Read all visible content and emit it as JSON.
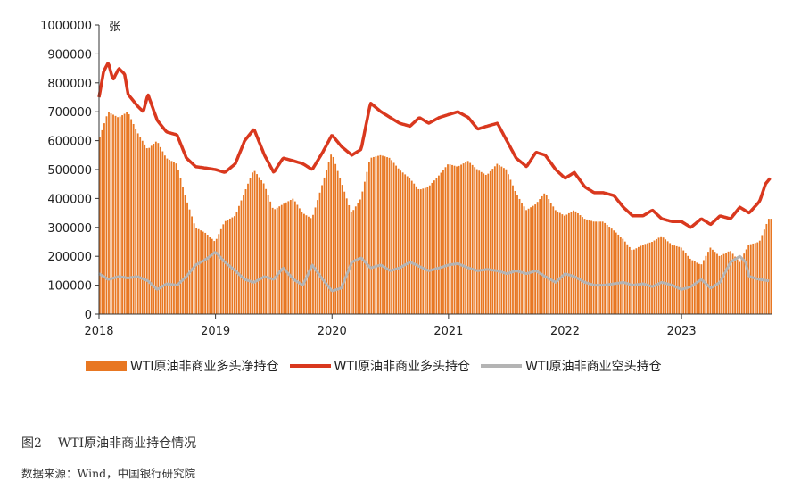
{
  "chart_data": {
    "type": "bar+line",
    "unit_label": "张",
    "ylim": [
      0,
      1000000
    ],
    "yticks": [
      0,
      100000,
      200000,
      300000,
      400000,
      500000,
      600000,
      700000,
      800000,
      900000,
      1000000
    ],
    "xlim": [
      2018.0,
      2023.78
    ],
    "xticks": [
      "2018",
      "2019",
      "2020",
      "2021",
      "2022",
      "2023"
    ],
    "legend_position": "bottom",
    "grid": false,
    "series": [
      {
        "name": "WTI原油非商业多头净持仓",
        "type": "bar",
        "color": "#E87722",
        "points": [
          [
            2018.0,
            600000
          ],
          [
            2018.08,
            700000
          ],
          [
            2018.17,
            680000
          ],
          [
            2018.25,
            700000
          ],
          [
            2018.33,
            630000
          ],
          [
            2018.42,
            570000
          ],
          [
            2018.5,
            600000
          ],
          [
            2018.58,
            540000
          ],
          [
            2018.67,
            520000
          ],
          [
            2018.75,
            400000
          ],
          [
            2018.83,
            300000
          ],
          [
            2018.92,
            280000
          ],
          [
            2019.0,
            250000
          ],
          [
            2019.08,
            320000
          ],
          [
            2019.17,
            340000
          ],
          [
            2019.25,
            420000
          ],
          [
            2019.33,
            500000
          ],
          [
            2019.42,
            450000
          ],
          [
            2019.5,
            360000
          ],
          [
            2019.58,
            380000
          ],
          [
            2019.67,
            400000
          ],
          [
            2019.75,
            350000
          ],
          [
            2019.83,
            330000
          ],
          [
            2019.92,
            450000
          ],
          [
            2020.0,
            560000
          ],
          [
            2020.08,
            460000
          ],
          [
            2020.17,
            350000
          ],
          [
            2020.25,
            400000
          ],
          [
            2020.33,
            540000
          ],
          [
            2020.42,
            550000
          ],
          [
            2020.5,
            540000
          ],
          [
            2020.58,
            500000
          ],
          [
            2020.67,
            470000
          ],
          [
            2020.75,
            430000
          ],
          [
            2020.83,
            440000
          ],
          [
            2020.92,
            480000
          ],
          [
            2021.0,
            520000
          ],
          [
            2021.08,
            510000
          ],
          [
            2021.17,
            530000
          ],
          [
            2021.25,
            500000
          ],
          [
            2021.33,
            480000
          ],
          [
            2021.42,
            520000
          ],
          [
            2021.5,
            500000
          ],
          [
            2021.58,
            420000
          ],
          [
            2021.67,
            360000
          ],
          [
            2021.75,
            380000
          ],
          [
            2021.83,
            420000
          ],
          [
            2021.92,
            360000
          ],
          [
            2022.0,
            340000
          ],
          [
            2022.08,
            360000
          ],
          [
            2022.17,
            330000
          ],
          [
            2022.25,
            320000
          ],
          [
            2022.33,
            320000
          ],
          [
            2022.42,
            290000
          ],
          [
            2022.5,
            260000
          ],
          [
            2022.58,
            220000
          ],
          [
            2022.67,
            240000
          ],
          [
            2022.75,
            250000
          ],
          [
            2022.83,
            270000
          ],
          [
            2022.92,
            240000
          ],
          [
            2023.0,
            230000
          ],
          [
            2023.08,
            190000
          ],
          [
            2023.17,
            170000
          ],
          [
            2023.25,
            230000
          ],
          [
            2023.33,
            200000
          ],
          [
            2023.42,
            220000
          ],
          [
            2023.5,
            180000
          ],
          [
            2023.58,
            240000
          ],
          [
            2023.67,
            250000
          ],
          [
            2023.75,
            330000
          ]
        ]
      },
      {
        "name": "WTI原油非商业多头持仓",
        "type": "line",
        "color": "#D9381E",
        "points": [
          [
            2018.0,
            750000
          ],
          [
            2018.04,
            840000
          ],
          [
            2018.08,
            870000
          ],
          [
            2018.12,
            810000
          ],
          [
            2018.17,
            850000
          ],
          [
            2018.22,
            830000
          ],
          [
            2018.25,
            760000
          ],
          [
            2018.33,
            720000
          ],
          [
            2018.38,
            700000
          ],
          [
            2018.42,
            760000
          ],
          [
            2018.5,
            670000
          ],
          [
            2018.58,
            630000
          ],
          [
            2018.67,
            620000
          ],
          [
            2018.75,
            540000
          ],
          [
            2018.83,
            510000
          ],
          [
            2018.92,
            505000
          ],
          [
            2019.0,
            500000
          ],
          [
            2019.08,
            490000
          ],
          [
            2019.17,
            520000
          ],
          [
            2019.25,
            600000
          ],
          [
            2019.33,
            640000
          ],
          [
            2019.42,
            550000
          ],
          [
            2019.5,
            490000
          ],
          [
            2019.58,
            540000
          ],
          [
            2019.67,
            530000
          ],
          [
            2019.75,
            520000
          ],
          [
            2019.83,
            500000
          ],
          [
            2019.92,
            560000
          ],
          [
            2020.0,
            620000
          ],
          [
            2020.08,
            580000
          ],
          [
            2020.17,
            550000
          ],
          [
            2020.25,
            570000
          ],
          [
            2020.33,
            730000
          ],
          [
            2020.42,
            700000
          ],
          [
            2020.5,
            680000
          ],
          [
            2020.58,
            660000
          ],
          [
            2020.67,
            650000
          ],
          [
            2020.75,
            680000
          ],
          [
            2020.83,
            660000
          ],
          [
            2020.92,
            680000
          ],
          [
            2021.0,
            690000
          ],
          [
            2021.08,
            700000
          ],
          [
            2021.17,
            680000
          ],
          [
            2021.25,
            640000
          ],
          [
            2021.33,
            650000
          ],
          [
            2021.42,
            660000
          ],
          [
            2021.5,
            600000
          ],
          [
            2021.58,
            540000
          ],
          [
            2021.67,
            510000
          ],
          [
            2021.75,
            560000
          ],
          [
            2021.83,
            550000
          ],
          [
            2021.92,
            500000
          ],
          [
            2022.0,
            470000
          ],
          [
            2022.08,
            490000
          ],
          [
            2022.17,
            440000
          ],
          [
            2022.25,
            420000
          ],
          [
            2022.33,
            420000
          ],
          [
            2022.42,
            410000
          ],
          [
            2022.5,
            370000
          ],
          [
            2022.58,
            340000
          ],
          [
            2022.67,
            340000
          ],
          [
            2022.75,
            360000
          ],
          [
            2022.83,
            330000
          ],
          [
            2022.92,
            320000
          ],
          [
            2023.0,
            320000
          ],
          [
            2023.08,
            300000
          ],
          [
            2023.17,
            330000
          ],
          [
            2023.25,
            310000
          ],
          [
            2023.33,
            340000
          ],
          [
            2023.42,
            330000
          ],
          [
            2023.5,
            370000
          ],
          [
            2023.58,
            350000
          ],
          [
            2023.67,
            390000
          ],
          [
            2023.72,
            450000
          ],
          [
            2023.76,
            470000
          ]
        ]
      },
      {
        "name": "WTI原油非商业空头持仓",
        "type": "line",
        "color": "#B4B4B4",
        "points": [
          [
            2018.0,
            140000
          ],
          [
            2018.08,
            120000
          ],
          [
            2018.17,
            130000
          ],
          [
            2018.25,
            125000
          ],
          [
            2018.33,
            130000
          ],
          [
            2018.42,
            115000
          ],
          [
            2018.5,
            85000
          ],
          [
            2018.58,
            105000
          ],
          [
            2018.67,
            100000
          ],
          [
            2018.75,
            130000
          ],
          [
            2018.83,
            170000
          ],
          [
            2018.92,
            190000
          ],
          [
            2019.0,
            215000
          ],
          [
            2019.08,
            180000
          ],
          [
            2019.17,
            150000
          ],
          [
            2019.25,
            120000
          ],
          [
            2019.33,
            110000
          ],
          [
            2019.42,
            130000
          ],
          [
            2019.5,
            120000
          ],
          [
            2019.58,
            160000
          ],
          [
            2019.67,
            120000
          ],
          [
            2019.75,
            100000
          ],
          [
            2019.83,
            170000
          ],
          [
            2019.92,
            120000
          ],
          [
            2020.0,
            80000
          ],
          [
            2020.08,
            90000
          ],
          [
            2020.17,
            180000
          ],
          [
            2020.25,
            195000
          ],
          [
            2020.33,
            160000
          ],
          [
            2020.42,
            170000
          ],
          [
            2020.5,
            150000
          ],
          [
            2020.58,
            160000
          ],
          [
            2020.67,
            180000
          ],
          [
            2020.75,
            165000
          ],
          [
            2020.83,
            150000
          ],
          [
            2020.92,
            160000
          ],
          [
            2021.0,
            170000
          ],
          [
            2021.08,
            175000
          ],
          [
            2021.17,
            160000
          ],
          [
            2021.25,
            150000
          ],
          [
            2021.33,
            155000
          ],
          [
            2021.42,
            150000
          ],
          [
            2021.5,
            140000
          ],
          [
            2021.58,
            150000
          ],
          [
            2021.67,
            140000
          ],
          [
            2021.75,
            150000
          ],
          [
            2021.83,
            130000
          ],
          [
            2021.92,
            110000
          ],
          [
            2022.0,
            140000
          ],
          [
            2022.08,
            130000
          ],
          [
            2022.17,
            110000
          ],
          [
            2022.25,
            100000
          ],
          [
            2022.33,
            100000
          ],
          [
            2022.42,
            105000
          ],
          [
            2022.5,
            110000
          ],
          [
            2022.58,
            100000
          ],
          [
            2022.67,
            105000
          ],
          [
            2022.75,
            95000
          ],
          [
            2022.83,
            110000
          ],
          [
            2022.92,
            100000
          ],
          [
            2023.0,
            85000
          ],
          [
            2023.08,
            95000
          ],
          [
            2023.17,
            120000
          ],
          [
            2023.25,
            90000
          ],
          [
            2023.33,
            110000
          ],
          [
            2023.42,
            180000
          ],
          [
            2023.5,
            200000
          ],
          [
            2023.55,
            180000
          ],
          [
            2023.58,
            130000
          ],
          [
            2023.67,
            120000
          ],
          [
            2023.75,
            115000
          ]
        ]
      }
    ]
  },
  "caption": {
    "figure_number": "图2",
    "title": "WTI原油非商业持仓情况"
  },
  "source": "数据来源：Wind，中国银行研究院"
}
